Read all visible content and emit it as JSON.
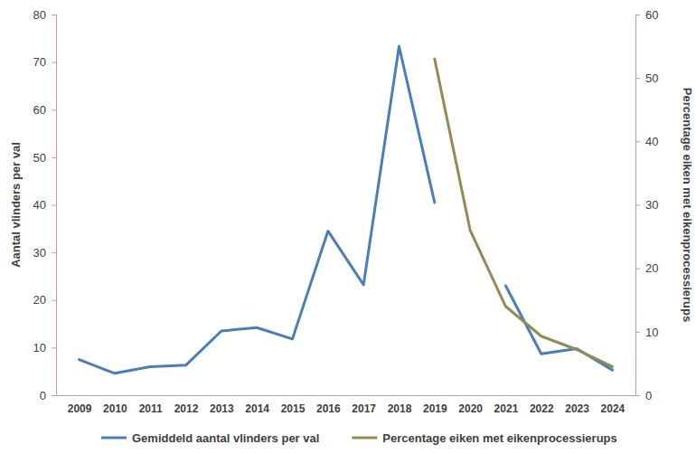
{
  "chart_data": {
    "type": "line",
    "categories": [
      "2009",
      "2010",
      "2011",
      "2012",
      "2013",
      "2014",
      "2015",
      "2016",
      "2017",
      "2018",
      "2019",
      "2020",
      "2021",
      "2022",
      "2023",
      "2024"
    ],
    "y_label": "Aantal vlinders per val",
    "y2_label": "Percentage eiken met eikenprocessierups",
    "ylim": [
      0,
      80
    ],
    "yticks": [
      0,
      10,
      20,
      30,
      40,
      50,
      60,
      70,
      80
    ],
    "y2lim": [
      0,
      60
    ],
    "y2ticks": [
      0,
      10,
      20,
      30,
      40,
      50,
      60
    ],
    "grid": false,
    "legend": "bottom",
    "series": [
      {
        "name": "Gemiddeld aantal vlinders per val",
        "color": "#4a7ebb",
        "values": [
          7.5,
          4.6,
          6.0,
          6.3,
          13.5,
          14.2,
          11.8,
          34.5,
          23.2,
          73.3,
          40.5,
          null,
          23.0,
          8.7,
          9.8,
          5.3
        ]
      },
      {
        "name": "Percentage eiken met eikenprocessierups",
        "color": "#948a54",
        "axis": "y2",
        "values": [
          null,
          null,
          null,
          null,
          null,
          null,
          null,
          null,
          null,
          null,
          53.0,
          26.0,
          14.0,
          9.3,
          7.2,
          4.5
        ]
      }
    ]
  }
}
